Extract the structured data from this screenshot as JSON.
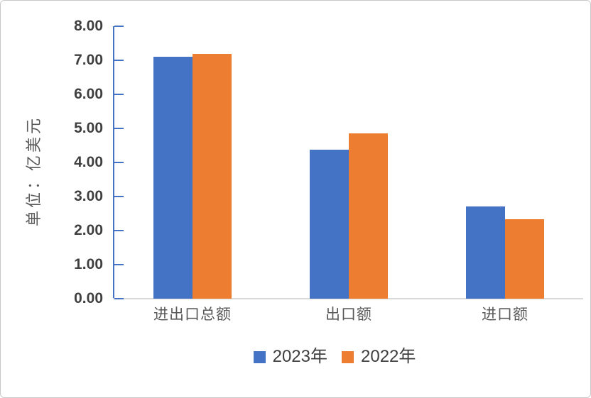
{
  "chart_data": {
    "type": "bar",
    "categories": [
      "进出口总额",
      "出口额",
      "进口额"
    ],
    "series": [
      {
        "name": "2023年",
        "color": "#4472C4",
        "values": [
          7.1,
          4.38,
          2.71
        ]
      },
      {
        "name": "2022年",
        "color": "#ED7D31",
        "values": [
          7.18,
          4.85,
          2.33
        ]
      }
    ],
    "title": "",
    "xlabel": "",
    "ylabel": "单位：亿美元",
    "ylim": [
      0,
      8
    ],
    "ytick_step": 1,
    "ytick_labels": [
      "0.00",
      "1.00",
      "2.00",
      "3.00",
      "4.00",
      "5.00",
      "6.00",
      "7.00",
      "8.00"
    ],
    "grid": false,
    "legend_position": "bottom"
  },
  "colors": {
    "series_2023": "#4472C4",
    "series_2022": "#ED7D31",
    "axis_line": "#4472C4",
    "baseline": "#D9D9D9",
    "tick_label": "#3F3F3F",
    "category_label": "#595959",
    "axis_title": "#595959",
    "legend_text": "#404040",
    "border": "#C9C9C9",
    "background": "#FFFFFF"
  }
}
